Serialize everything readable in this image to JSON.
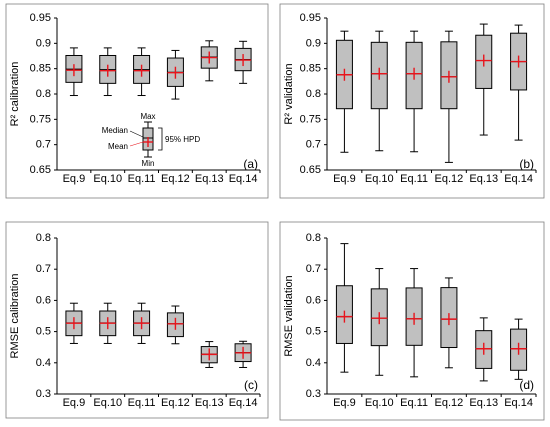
{
  "colors": {
    "box_fill": "#c0c0c0",
    "box_stroke": "#000000",
    "mean_marker": "#e8141c",
    "frame": "#7f7f7f"
  },
  "legend": {
    "max_label": "Max",
    "median_label": "Median",
    "mean_label": "Mean",
    "min_label": "Min",
    "hpd_label": "95% HPD"
  },
  "chart_data": [
    {
      "type": "box",
      "panel_label": "(a)",
      "ylabel": "R² calibration",
      "ylim": [
        0.65,
        0.95
      ],
      "yticks": [
        "0.65",
        "0.7",
        "0.75",
        "0.8",
        "0.85",
        "0.9",
        "0.95"
      ],
      "categories": [
        "Eq.9",
        "Eq.10",
        "Eq.11",
        "Eq.12",
        "Eq.13",
        "Eq.14"
      ],
      "boxes": [
        {
          "min": 0.797,
          "q1": 0.823,
          "median": 0.849,
          "mean": 0.847,
          "q3": 0.876,
          "max": 0.891
        },
        {
          "min": 0.797,
          "q1": 0.821,
          "median": 0.848,
          "mean": 0.846,
          "q3": 0.876,
          "max": 0.891
        },
        {
          "min": 0.797,
          "q1": 0.821,
          "median": 0.848,
          "mean": 0.846,
          "q3": 0.876,
          "max": 0.891
        },
        {
          "min": 0.79,
          "q1": 0.815,
          "median": 0.843,
          "mean": 0.842,
          "q3": 0.871,
          "max": 0.886
        },
        {
          "min": 0.826,
          "q1": 0.851,
          "median": 0.873,
          "mean": 0.872,
          "q3": 0.893,
          "max": 0.905
        },
        {
          "min": 0.821,
          "q1": 0.846,
          "median": 0.868,
          "mean": 0.867,
          "q3": 0.89,
          "max": 0.904
        }
      ]
    },
    {
      "type": "box",
      "panel_label": "(b)",
      "ylabel": "R² validation",
      "ylim": [
        0.65,
        0.95
      ],
      "yticks": [
        "0.65",
        "0.7",
        "0.75",
        "0.8",
        "0.85",
        "0.9",
        "0.95"
      ],
      "categories": [
        "Eq.9",
        "Eq.10",
        "Eq.11",
        "Eq.12",
        "Eq.13",
        "Eq.14"
      ],
      "boxes": [
        {
          "min": 0.685,
          "q1": 0.771,
          "median": 0.838,
          "mean": 0.838,
          "q3": 0.906,
          "max": 0.924
        },
        {
          "min": 0.688,
          "q1": 0.771,
          "median": 0.84,
          "mean": 0.84,
          "q3": 0.902,
          "max": 0.924
        },
        {
          "min": 0.686,
          "q1": 0.771,
          "median": 0.84,
          "mean": 0.84,
          "q3": 0.902,
          "max": 0.924
        },
        {
          "min": 0.665,
          "q1": 0.771,
          "median": 0.834,
          "mean": 0.834,
          "q3": 0.903,
          "max": 0.924
        },
        {
          "min": 0.719,
          "q1": 0.811,
          "median": 0.866,
          "mean": 0.866,
          "q3": 0.916,
          "max": 0.938
        },
        {
          "min": 0.709,
          "q1": 0.808,
          "median": 0.864,
          "mean": 0.864,
          "q3": 0.92,
          "max": 0.936
        }
      ]
    },
    {
      "type": "box",
      "panel_label": "(c)",
      "ylabel": "RMSE calibration",
      "ylim": [
        0.3,
        0.8
      ],
      "yticks": [
        "0.3",
        "0.4",
        "0.5",
        "0.6",
        "0.7",
        "0.8"
      ],
      "categories": [
        "Eq.9",
        "Eq.10",
        "Eq.11",
        "Eq.12",
        "Eq.13",
        "Eq.14"
      ],
      "boxes": [
        {
          "min": 0.462,
          "q1": 0.487,
          "median": 0.528,
          "mean": 0.527,
          "q3": 0.566,
          "max": 0.591
        },
        {
          "min": 0.462,
          "q1": 0.487,
          "median": 0.528,
          "mean": 0.527,
          "q3": 0.566,
          "max": 0.591
        },
        {
          "min": 0.462,
          "q1": 0.487,
          "median": 0.528,
          "mean": 0.527,
          "q3": 0.566,
          "max": 0.591
        },
        {
          "min": 0.461,
          "q1": 0.484,
          "median": 0.525,
          "mean": 0.525,
          "q3": 0.56,
          "max": 0.582
        },
        {
          "min": 0.385,
          "q1": 0.4,
          "median": 0.428,
          "mean": 0.427,
          "q3": 0.452,
          "max": 0.468
        },
        {
          "min": 0.385,
          "q1": 0.404,
          "median": 0.433,
          "mean": 0.432,
          "q3": 0.461,
          "max": 0.469
        }
      ]
    },
    {
      "type": "box",
      "panel_label": "(d)",
      "ylabel": "RMSE validation",
      "ylim": [
        0.3,
        0.8
      ],
      "yticks": [
        "0.3",
        "0.4",
        "0.5",
        "0.6",
        "0.7",
        "0.8"
      ],
      "categories": [
        "Eq.9",
        "Eq.10",
        "Eq.11",
        "Eq.12",
        "Eq.13",
        "Eq.14"
      ],
      "boxes": [
        {
          "min": 0.37,
          "q1": 0.462,
          "median": 0.548,
          "mean": 0.548,
          "q3": 0.647,
          "max": 0.782
        },
        {
          "min": 0.36,
          "q1": 0.455,
          "median": 0.543,
          "mean": 0.543,
          "q3": 0.637,
          "max": 0.702
        },
        {
          "min": 0.355,
          "q1": 0.456,
          "median": 0.541,
          "mean": 0.541,
          "q3": 0.64,
          "max": 0.702
        },
        {
          "min": 0.384,
          "q1": 0.449,
          "median": 0.54,
          "mean": 0.54,
          "q3": 0.641,
          "max": 0.672
        },
        {
          "min": 0.342,
          "q1": 0.382,
          "median": 0.445,
          "mean": 0.445,
          "q3": 0.503,
          "max": 0.544
        },
        {
          "min": 0.347,
          "q1": 0.376,
          "median": 0.445,
          "mean": 0.445,
          "q3": 0.508,
          "max": 0.54
        }
      ]
    }
  ]
}
